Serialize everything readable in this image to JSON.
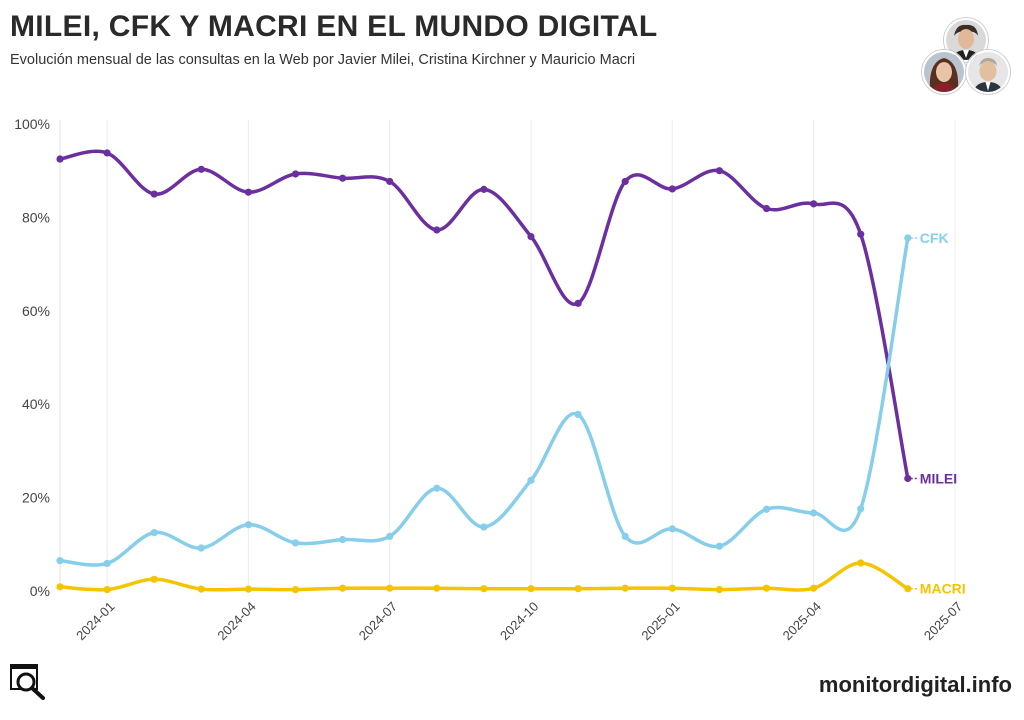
{
  "header": {
    "title": "MILEI, CFK Y MACRI EN EL MUNDO DIGITAL",
    "subtitle": "Evolución mensual de las consultas en la Web por Javier Milei, Cristina Kirchner y Mauricio Macri"
  },
  "avatars": [
    {
      "name": "Milei"
    },
    {
      "name": "CFK"
    },
    {
      "name": "Macri"
    }
  ],
  "footer": {
    "brand": "monitordigital.info",
    "logo_icon": "magnifier-logo-icon"
  },
  "chart_data": {
    "type": "line",
    "title": "MILEI, CFK Y MACRI EN EL MUNDO DIGITAL",
    "xlabel": "",
    "ylabel": "",
    "ylim": [
      0,
      100
    ],
    "yticks": [
      0,
      20,
      40,
      60,
      80,
      100
    ],
    "ytick_labels": [
      "0%",
      "20%",
      "40%",
      "60%",
      "80%",
      "100%"
    ],
    "x_months": [
      "2023-12",
      "2024-01",
      "2024-02",
      "2024-03",
      "2024-04",
      "2024-05",
      "2024-06",
      "2024-07",
      "2024-08",
      "2024-09",
      "2024-10",
      "2024-11",
      "2024-12",
      "2025-01",
      "2025-02",
      "2025-03",
      "2025-04",
      "2025-05",
      "2025-06"
    ],
    "xticks": [
      "2024-01",
      "2024-04",
      "2024-07",
      "2024-10",
      "2025-01",
      "2025-04",
      "2025-07"
    ],
    "xtick_indices": [
      1,
      4,
      7,
      10,
      13,
      16,
      19
    ],
    "grid": "vertical-only",
    "series": [
      {
        "name": "MILEI",
        "color": "#6b2fa0",
        "values": [
          92.5,
          93.8,
          85.0,
          90.3,
          85.4,
          89.3,
          88.4,
          87.7,
          77.3,
          86.0,
          75.9,
          61.6,
          87.7,
          86.1,
          90.0,
          81.9,
          82.9,
          76.4,
          24.1
        ]
      },
      {
        "name": "CFK",
        "color": "#87ceeb",
        "values": [
          6.5,
          5.9,
          12.5,
          9.2,
          14.2,
          10.3,
          11.0,
          11.7,
          22.0,
          13.7,
          23.7,
          37.8,
          11.7,
          13.3,
          9.6,
          17.5,
          16.7,
          17.6,
          75.6
        ]
      },
      {
        "name": "MACRI",
        "color": "#f5c400",
        "values": [
          0.9,
          0.3,
          2.5,
          0.4,
          0.4,
          0.3,
          0.6,
          0.6,
          0.6,
          0.5,
          0.5,
          0.5,
          0.6,
          0.6,
          0.3,
          0.6,
          0.6,
          6.0,
          0.5
        ]
      }
    ],
    "series_label_side": "right-end"
  }
}
